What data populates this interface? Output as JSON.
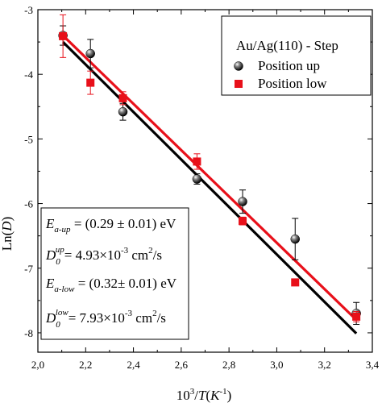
{
  "chart_data": {
    "type": "scatter",
    "title": "",
    "xlabel": "10³/T(K⁻¹)",
    "ylabel": "Ln(D)",
    "xlim": [
      2.0,
      3.4
    ],
    "ylim": [
      -8.3,
      -3.0
    ],
    "x_ticks": [
      "2,0",
      "2,2",
      "2,4",
      "2,6",
      "2,8",
      "3,0",
      "3,2",
      "3,4"
    ],
    "y_ticks": [
      "-3",
      "-4",
      "-5",
      "-6",
      "-7",
      "-8"
    ],
    "legend_title": "Au/Ag(110) - Step",
    "legend_position": "top-right",
    "series": [
      {
        "name": "Position up",
        "marker": "sphere",
        "color": "#000000",
        "x": [
          2.105,
          2.22,
          2.356,
          2.666,
          2.857,
          3.077,
          3.333
        ],
        "y": [
          -3.4,
          -3.68,
          -4.58,
          -5.62,
          -5.97,
          -6.55,
          -7.7
        ],
        "err": [
          0.15,
          0.22,
          0.13,
          0.08,
          0.18,
          0.32,
          0.17
        ]
      },
      {
        "name": "Position low",
        "marker": "square",
        "color": "#e8101a",
        "x": [
          2.105,
          2.22,
          2.356,
          2.666,
          2.857,
          3.077,
          3.333
        ],
        "y": [
          -3.41,
          -4.13,
          -4.37,
          -5.35,
          -6.27,
          -7.22,
          -7.75
        ],
        "err": [
          0.33,
          0.18,
          0.1,
          0.12,
          0.06,
          0.05,
          0.08
        ]
      }
    ],
    "fits": [
      {
        "series": "Position up",
        "color": "#000000",
        "x": [
          2.105,
          3.333
        ],
        "y": [
          -3.5,
          -8.01
        ]
      },
      {
        "series": "Position low",
        "color": "#e8101a",
        "x": [
          2.105,
          3.333
        ],
        "y": [
          -3.4,
          -7.8
        ]
      }
    ]
  },
  "equations": {
    "ea_up": {
      "base": "E",
      "sub": "a-up",
      "value": " = (0.29 ± 0.01) eV"
    },
    "d0_up": {
      "base": "D",
      "sub": "0",
      "sup": "up",
      "value": "= 4.93×10",
      "exp": "-3",
      "unit": " cm",
      "unit_sup": "2",
      "unit_tail": "/s"
    },
    "ea_low": {
      "base": "E",
      "sub": "a-low",
      "value": " = (0.32± 0.01) eV"
    },
    "d0_low": {
      "base": "D",
      "sub": "0",
      "sup": "low",
      "value": "= 7.93×10",
      "exp": "-3",
      "unit": " cm",
      "unit_sup": "2",
      "unit_tail": "/s"
    }
  },
  "colors": {
    "up": "#000000",
    "low": "#e8101a"
  }
}
